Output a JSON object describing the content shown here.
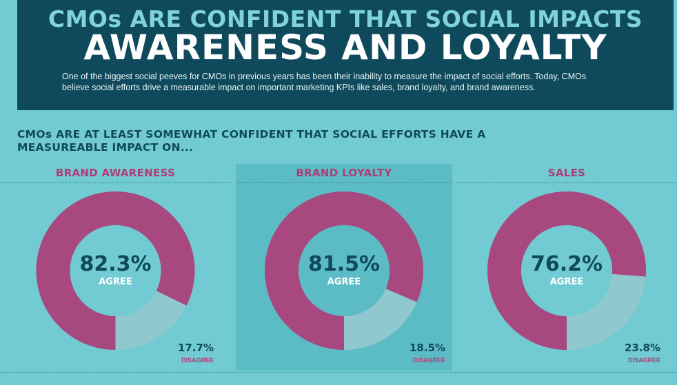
{
  "header": {
    "title_line1": "CMOs ARE CONFIDENT THAT SOCIAL IMPACTS",
    "title_line2": "AWARENESS AND LOYALTY",
    "intro": "One of the biggest social peeves for CMOs in previous years has been their inability to measure the impact of social efforts. Today, CMOs believe social efforts drive a measurable impact on important marketing KPIs like sales, brand loyalty, and brand awareness."
  },
  "subhead": "CMOs ARE AT LEAST SOMEWHAT CONFIDENT THAT SOCIAL EFFORTS HAVE A MEASUREABLE IMPACT ON...",
  "colors": {
    "agree": "#a7487f",
    "disagree": "#8fc8cf",
    "hole": "#72cad2",
    "hole_highlight": "#5cbcc5",
    "header_bg": "#0f4a5c"
  },
  "chart_data": [
    {
      "type": "pie",
      "title": "BRAND AWARENESS",
      "categories": [
        "AGREE",
        "DISAGREE"
      ],
      "values": [
        82.3,
        17.7
      ],
      "agree_label": "82.3%",
      "agree_text": "AGREE",
      "disagree_label": "17.7%",
      "disagree_text": "DISAGREE"
    },
    {
      "type": "pie",
      "title": "BRAND LOYALTY",
      "categories": [
        "AGREE",
        "DISAGREE"
      ],
      "values": [
        81.5,
        18.5
      ],
      "agree_label": "81.5%",
      "agree_text": "AGREE",
      "disagree_label": "18.5%",
      "disagree_text": "DISAGREE"
    },
    {
      "type": "pie",
      "title": "SALES",
      "categories": [
        "AGREE",
        "DISAGREE"
      ],
      "values": [
        76.2,
        23.8
      ],
      "agree_label": "76.2%",
      "agree_text": "AGREE",
      "disagree_label": "23.8%",
      "disagree_text": "DISAGREE"
    }
  ]
}
